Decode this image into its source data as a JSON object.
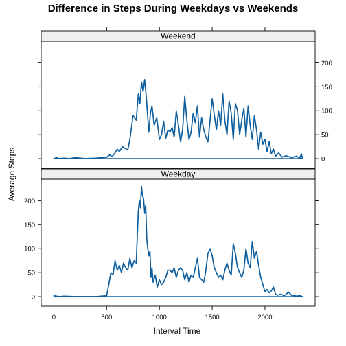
{
  "chart_data": {
    "type": "line",
    "title": "Difference in Steps During Weekdays vs Weekends",
    "xlabel": "Interval Time",
    "ylabel": "Average Steps",
    "xlim": [
      -120,
      2475
    ],
    "ylim": [
      -20,
      245
    ],
    "x_ticks": [
      0,
      500,
      1000,
      1500,
      2000
    ],
    "y_ticks": [
      0,
      50,
      100,
      150,
      200
    ],
    "grid": false,
    "line_color": "#0f5f9e",
    "panels": [
      {
        "name": "Weekend",
        "y_axis_side": "right",
        "x": [
          0,
          25,
          50,
          100,
          150,
          200,
          300,
          400,
          450,
          500,
          530,
          550,
          580,
          600,
          620,
          650,
          700,
          720,
          750,
          780,
          800,
          815,
          830,
          845,
          860,
          875,
          900,
          915,
          930,
          950,
          975,
          1000,
          1020,
          1040,
          1060,
          1080,
          1100,
          1120,
          1140,
          1160,
          1180,
          1200,
          1220,
          1240,
          1260,
          1280,
          1300,
          1320,
          1340,
          1360,
          1380,
          1400,
          1420,
          1440,
          1460,
          1480,
          1500,
          1520,
          1540,
          1560,
          1580,
          1600,
          1620,
          1640,
          1660,
          1680,
          1700,
          1720,
          1740,
          1760,
          1780,
          1800,
          1820,
          1840,
          1860,
          1880,
          1900,
          1920,
          1940,
          1960,
          1980,
          2000,
          2020,
          2040,
          2060,
          2080,
          2100,
          2130,
          2160,
          2200,
          2250,
          2300,
          2330,
          2345,
          2355
        ],
        "y": [
          0,
          2,
          0,
          1,
          0,
          2,
          0,
          1,
          2,
          3,
          8,
          4,
          12,
          20,
          15,
          25,
          18,
          40,
          90,
          80,
          135,
          115,
          160,
          140,
          165,
          130,
          55,
          95,
          110,
          70,
          85,
          40,
          50,
          78,
          42,
          60,
          55,
          65,
          45,
          100,
          70,
          35,
          60,
          130,
          80,
          40,
          55,
          95,
          75,
          110,
          45,
          85,
          60,
          45,
          35,
          80,
          125,
          90,
          60,
          100,
          70,
          135,
          80,
          50,
          120,
          95,
          40,
          115,
          100,
          50,
          80,
          105,
          45,
          110,
          70,
          40,
          90,
          60,
          20,
          55,
          30,
          40,
          15,
          35,
          10,
          20,
          5,
          12,
          3,
          6,
          2,
          5,
          1,
          10,
          0
        ]
      },
      {
        "name": "Weekday",
        "y_axis_side": "left",
        "x": [
          0,
          25,
          50,
          100,
          200,
          300,
          400,
          450,
          500,
          520,
          540,
          560,
          580,
          600,
          620,
          640,
          660,
          680,
          700,
          720,
          740,
          760,
          780,
          800,
          810,
          820,
          830,
          840,
          850,
          860,
          870,
          880,
          890,
          900,
          910,
          920,
          930,
          940,
          960,
          980,
          1000,
          1020,
          1040,
          1060,
          1080,
          1100,
          1120,
          1140,
          1160,
          1180,
          1200,
          1220,
          1240,
          1260,
          1280,
          1300,
          1320,
          1340,
          1360,
          1380,
          1400,
          1420,
          1440,
          1460,
          1480,
          1500,
          1520,
          1540,
          1560,
          1580,
          1600,
          1620,
          1640,
          1660,
          1680,
          1700,
          1720,
          1740,
          1760,
          1780,
          1800,
          1820,
          1840,
          1860,
          1880,
          1900,
          1920,
          1940,
          1960,
          1980,
          2000,
          2020,
          2040,
          2060,
          2080,
          2100,
          2120,
          2150,
          2180,
          2200,
          2220,
          2250,
          2300,
          2330,
          2355
        ],
        "y": [
          2,
          1,
          0,
          1,
          0,
          0,
          0,
          1,
          2,
          25,
          50,
          45,
          75,
          55,
          65,
          50,
          70,
          60,
          55,
          80,
          60,
          75,
          70,
          180,
          200,
          185,
          230,
          210,
          205,
          175,
          190,
          120,
          100,
          85,
          95,
          40,
          60,
          30,
          45,
          20,
          35,
          25,
          30,
          40,
          55,
          55,
          50,
          60,
          40,
          55,
          60,
          55,
          35,
          50,
          30,
          45,
          40,
          60,
          80,
          40,
          35,
          30,
          55,
          90,
          100,
          85,
          60,
          50,
          40,
          45,
          35,
          55,
          70,
          55,
          45,
          110,
          90,
          60,
          50,
          40,
          55,
          100,
          70,
          60,
          115,
          80,
          95,
          65,
          40,
          25,
          10,
          15,
          8,
          12,
          20,
          5,
          3,
          5,
          2,
          4,
          10,
          3,
          1,
          2,
          0
        ]
      }
    ]
  }
}
